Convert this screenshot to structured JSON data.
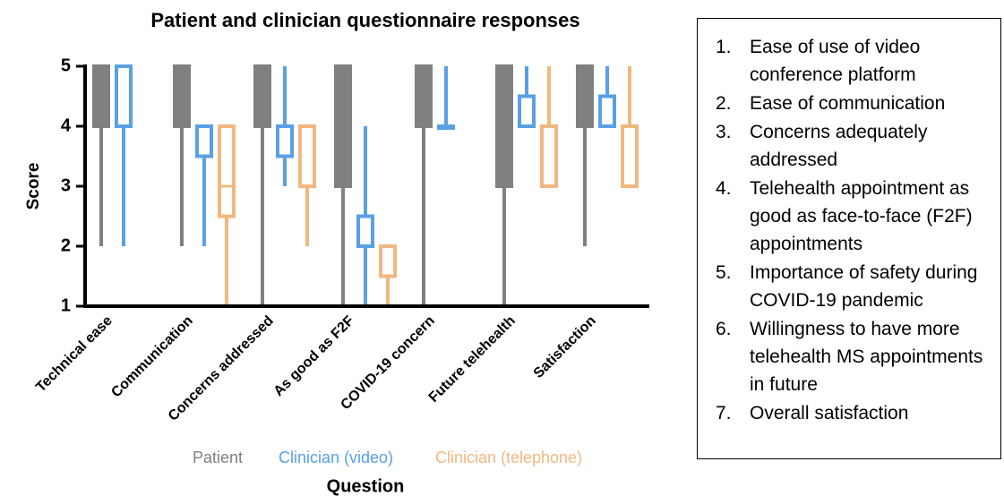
{
  "chart_data": {
    "type": "box",
    "title": "Patient and clinician questionnaire responses",
    "xlabel": "Question",
    "ylabel": "Score",
    "categories": [
      "Technical ease",
      "Communication",
      "Concerns addressed",
      "As good as F2F",
      "COVID-19 concern",
      "Future telehealth",
      "Satisfaction"
    ],
    "ylim": [
      1,
      5
    ],
    "yticks": [
      1,
      2,
      3,
      4,
      5
    ],
    "series": [
      {
        "name": "Patient",
        "color": "#808080",
        "filled": true,
        "values": [
          [
            2,
            4,
            5,
            5,
            5
          ],
          [
            2,
            4,
            5,
            5,
            5
          ],
          [
            1,
            4,
            5,
            5,
            5
          ],
          [
            1,
            3,
            4,
            5,
            5
          ],
          [
            1,
            4,
            5,
            5,
            5
          ],
          [
            1,
            3,
            4,
            5,
            5
          ],
          [
            2,
            4,
            5,
            5,
            5
          ]
        ]
      },
      {
        "name": "Clinician (video)",
        "color": "#5aa0e6",
        "filled": false,
        "values": [
          [
            2,
            4,
            5,
            5,
            5
          ],
          [
            2,
            3.5,
            4,
            4,
            4
          ],
          [
            3,
            3.5,
            4,
            4,
            5
          ],
          [
            1,
            2,
            2,
            2.5,
            4
          ],
          [
            4,
            4,
            4,
            4,
            5
          ],
          [
            4,
            4,
            4.5,
            4.5,
            5
          ],
          [
            4,
            4,
            4.5,
            4.5,
            5
          ]
        ]
      },
      {
        "name": "Clinician (telephone)",
        "color": "#f0b880",
        "filled": false,
        "values": [
          null,
          [
            1,
            2.5,
            3,
            4,
            4
          ],
          [
            2,
            3,
            4,
            4,
            4
          ],
          [
            1,
            1.5,
            2,
            2,
            2
          ],
          null,
          [
            3,
            3,
            4,
            4,
            5
          ],
          [
            3,
            3,
            4,
            4,
            5
          ]
        ]
      }
    ]
  },
  "panel": {
    "items": [
      {
        "number": "1.",
        "text": "Ease of use of video conference platform"
      },
      {
        "number": "2.",
        "text": "Ease of communication"
      },
      {
        "number": "3.",
        "text": "Concerns adequately addressed"
      },
      {
        "number": "4.",
        "text": "Telehealth appointment as good as face-to-face (F2F) appointments"
      },
      {
        "number": "5.",
        "text": "Importance of safety during COVID-19 pandemic"
      },
      {
        "number": "6.",
        "text": "Willingness to have more telehealth MS appointments in future"
      },
      {
        "number": "7.",
        "text": "Overall satisfaction"
      }
    ]
  }
}
